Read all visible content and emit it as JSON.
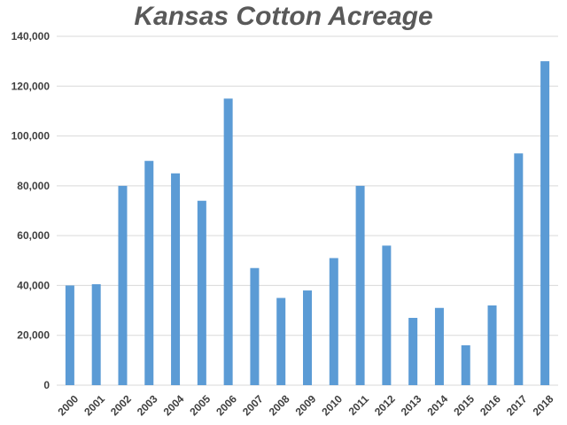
{
  "chart_data": {
    "type": "bar",
    "title": "Kansas Cotton Acreage",
    "xlabel": "",
    "ylabel": "",
    "categories": [
      "2000",
      "2001",
      "2002",
      "2003",
      "2004",
      "2005",
      "2006",
      "2007",
      "2008",
      "2009",
      "2010",
      "2011",
      "2012",
      "2013",
      "2014",
      "2015",
      "2016",
      "2017",
      "2018"
    ],
    "values": [
      40000,
      40500,
      80000,
      90000,
      85000,
      74000,
      115000,
      47000,
      35000,
      38000,
      51000,
      80000,
      56000,
      27000,
      31000,
      16000,
      32000,
      93000,
      130000
    ],
    "ylim": [
      0,
      140000
    ],
    "yticks": [
      0,
      20000,
      40000,
      60000,
      80000,
      100000,
      120000,
      140000
    ],
    "ytick_labels": [
      "0",
      "20,000",
      "40,000",
      "60,000",
      "80,000",
      "100,000",
      "120,000",
      "140,000"
    ],
    "grid": true,
    "legend": "none",
    "bar_color": "#5b9bd5",
    "grid_color": "#d9d9d9"
  }
}
